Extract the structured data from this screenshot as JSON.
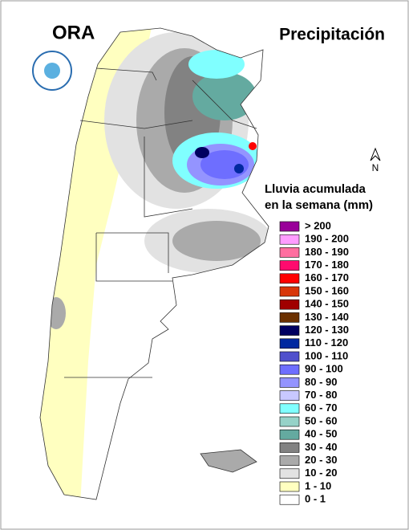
{
  "header": {
    "logo": "ORA",
    "title": "Precipitación"
  },
  "north": "N",
  "legend": {
    "title": [
      "Lluvia acumulada",
      "en la semana (mm)"
    ],
    "items": [
      {
        "label": "> 200",
        "color": "#990099"
      },
      {
        "label": "190 - 200",
        "color": "#ff9cff"
      },
      {
        "label": "180 - 190",
        "color": "#ff6ea0"
      },
      {
        "label": "170 - 180",
        "color": "#ff0a6e"
      },
      {
        "label": "160 - 170",
        "color": "#ff0000"
      },
      {
        "label": "150 - 160",
        "color": "#d8360a"
      },
      {
        "label": "140 - 150",
        "color": "#a00000"
      },
      {
        "label": "130 - 140",
        "color": "#6b3000"
      },
      {
        "label": "120 - 130",
        "color": "#000060"
      },
      {
        "label": "110 - 120",
        "color": "#0028a0"
      },
      {
        "label": "100 - 110",
        "color": "#5050cc"
      },
      {
        "label": "90 - 100",
        "color": "#6e6eff"
      },
      {
        "label": "80 - 90",
        "color": "#9494ff"
      },
      {
        "label": "70 - 80",
        "color": "#c8c8ff"
      },
      {
        "label": "60 - 70",
        "color": "#80ffff"
      },
      {
        "label": "50 - 60",
        "color": "#96d2c8"
      },
      {
        "label": "40 - 50",
        "color": "#64aaa0"
      },
      {
        "label": "30 - 40",
        "color": "#828282"
      },
      {
        "label": "20 - 30",
        "color": "#aaaaaa"
      },
      {
        "label": "10 - 20",
        "color": "#e2e2e2"
      },
      {
        "label": "1 - 10",
        "color": "#ffffc0"
      },
      {
        "label": "0 - 1",
        "color": "#ffffff"
      }
    ]
  }
}
